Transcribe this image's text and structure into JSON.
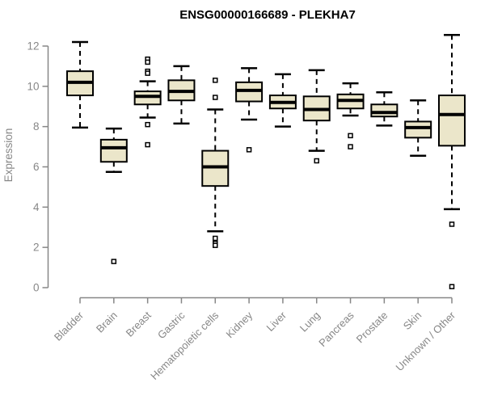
{
  "chart_data": {
    "type": "boxplot",
    "title": "ENSG00000166689 - PLEKHA7",
    "xlabel": "",
    "ylabel": "Expression",
    "ylim": [
      0,
      12
    ],
    "yticks": [
      0,
      2,
      4,
      6,
      8,
      10,
      12
    ],
    "grid": false,
    "legend": "none",
    "categories": [
      "Bladder",
      "Brain",
      "Breast",
      "Gastric",
      "Hematopoietic cells",
      "Kidney",
      "Liver",
      "Lung",
      "Pancreas",
      "Prostate",
      "Skin",
      "Unknown / Other"
    ],
    "series": [
      {
        "category": "Bladder",
        "whisker_low": 7.95,
        "q1": 9.55,
        "median": 10.2,
        "q3": 10.75,
        "whisker_high": 12.2,
        "outliers": []
      },
      {
        "category": "Brain",
        "whisker_low": 5.75,
        "q1": 6.25,
        "median": 6.95,
        "q3": 7.35,
        "whisker_high": 7.9,
        "outliers": [
          1.3
        ]
      },
      {
        "category": "Breast",
        "whisker_low": 8.45,
        "q1": 9.1,
        "median": 9.5,
        "q3": 9.75,
        "whisker_high": 10.25,
        "outliers": [
          11.35,
          11.2,
          10.75,
          10.65,
          8.1,
          7.1
        ]
      },
      {
        "category": "Gastric",
        "whisker_low": 8.15,
        "q1": 9.3,
        "median": 9.75,
        "q3": 10.3,
        "whisker_high": 11.0,
        "outliers": []
      },
      {
        "category": "Hematopoietic cells",
        "whisker_low": 2.8,
        "q1": 5.05,
        "median": 6.0,
        "q3": 6.8,
        "whisker_high": 8.85,
        "outliers": [
          10.3,
          9.45,
          2.45,
          2.2,
          2.1
        ]
      },
      {
        "category": "Kidney",
        "whisker_low": 8.35,
        "q1": 9.25,
        "median": 9.8,
        "q3": 10.2,
        "whisker_high": 10.9,
        "outliers": [
          6.85
        ]
      },
      {
        "category": "Liver",
        "whisker_low": 8.0,
        "q1": 8.9,
        "median": 9.2,
        "q3": 9.55,
        "whisker_high": 10.6,
        "outliers": []
      },
      {
        "category": "Lung",
        "whisker_low": 6.8,
        "q1": 8.3,
        "median": 8.85,
        "q3": 9.5,
        "whisker_high": 10.8,
        "outliers": [
          6.3
        ]
      },
      {
        "category": "Pancreas",
        "whisker_low": 8.55,
        "q1": 8.9,
        "median": 9.3,
        "q3": 9.6,
        "whisker_high": 10.15,
        "outliers": [
          7.55,
          7.0
        ]
      },
      {
        "category": "Prostate",
        "whisker_low": 8.05,
        "q1": 8.5,
        "median": 8.7,
        "q3": 9.1,
        "whisker_high": 9.7,
        "outliers": []
      },
      {
        "category": "Skin",
        "whisker_low": 6.55,
        "q1": 7.45,
        "median": 7.95,
        "q3": 8.25,
        "whisker_high": 9.3,
        "outliers": []
      },
      {
        "category": "Unknown / Other",
        "whisker_low": 3.9,
        "q1": 7.05,
        "median": 8.6,
        "q3": 9.55,
        "whisker_high": 12.55,
        "outliers": [
          3.15,
          0.05
        ]
      }
    ],
    "colors": {
      "box_fill": "#EBE6CA",
      "box_stroke": "#000000",
      "median": "#000000",
      "whisker": "#000000",
      "outlier": "#000000",
      "axis": "#878787",
      "title": "#000000",
      "background": "#FFFFFF"
    }
  }
}
